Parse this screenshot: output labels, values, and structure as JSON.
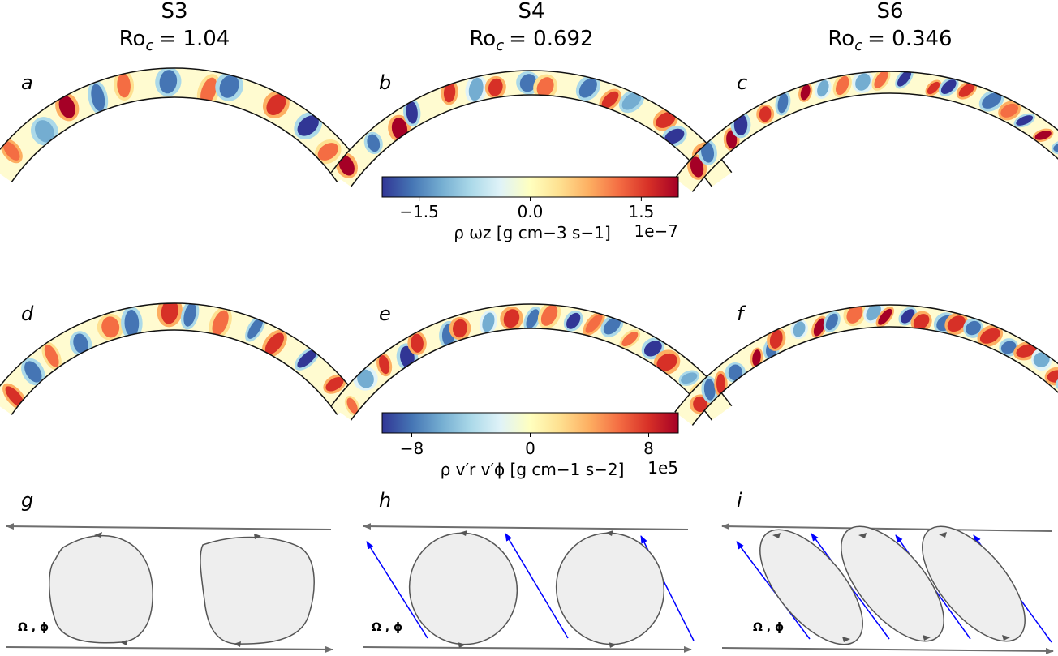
{
  "columns": [
    {
      "sim": "S3",
      "ro_label": "Ro",
      "ro_sub": "c",
      "ro_value": "= 1.04"
    },
    {
      "sim": "S4",
      "ro_label": "Ro",
      "ro_sub": "c",
      "ro_value": "= 0.692"
    },
    {
      "sim": "S6",
      "ro_label": "Ro",
      "ro_sub": "c",
      "ro_value": "= 0.346"
    }
  ],
  "panel_letters": [
    "a",
    "b",
    "c",
    "d",
    "e",
    "f",
    "g",
    "h",
    "i"
  ],
  "colorbars": [
    {
      "ticks": [
        "−1.5",
        "0.0",
        "1.5"
      ],
      "tick_values": [
        -1.5,
        0.0,
        1.5
      ],
      "range": [
        -2.0,
        2.0
      ],
      "label": "ρ ωz [g cm−3 s−1]",
      "scale": "1e−7"
    },
    {
      "ticks": [
        "−8",
        "0",
        "8"
      ],
      "tick_values": [
        -8,
        0,
        8
      ],
      "range": [
        -10,
        10
      ],
      "label": "ρ v′r v′ϕ [g cm−1 s−2]",
      "scale": "1e5"
    }
  ],
  "schematic_label": "Ω , ϕ",
  "colormap": [
    "#313695",
    "#4575b4",
    "#74add1",
    "#abd9e9",
    "#e0f3f8",
    "#ffffbf",
    "#fee090",
    "#fdae61",
    "#f46d43",
    "#d73027",
    "#a50026"
  ],
  "colors": {
    "arrow": "#6e6e6e",
    "blue_arrow": "#0000ff",
    "eddy_fill": "#eeeeee",
    "eddy_edge": "#555555"
  }
}
